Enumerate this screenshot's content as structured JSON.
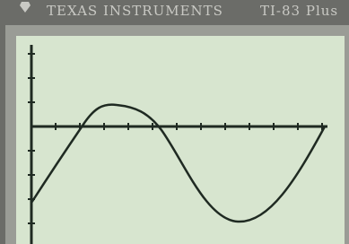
{
  "header": {
    "brand": "TEXAS INSTRUMENTS",
    "model": "TI-83 Plus"
  }
}
